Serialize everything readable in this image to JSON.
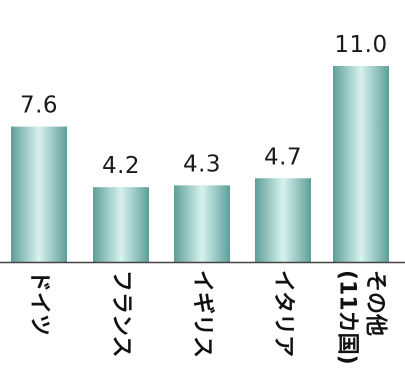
{
  "chart_data": {
    "type": "bar",
    "categories": [
      "ドイツ",
      "フランス",
      "イギリス",
      "イタリア",
      "その他(11カ国)"
    ],
    "category_label_lines": [
      [
        "ドイツ"
      ],
      [
        "フランス"
      ],
      [
        "イギリス"
      ],
      [
        "イタリア"
      ],
      [
        "その他",
        "(11カ国)"
      ]
    ],
    "values": [
      7.6,
      4.2,
      4.3,
      4.7,
      11.0
    ],
    "value_labels": [
      "7.6",
      "4.2",
      "4.3",
      "4.7",
      "11.0"
    ],
    "ylim": [
      0,
      11.0
    ],
    "grid": false,
    "legend": "none",
    "bar_gradient": [
      "#5e9e9a",
      "#d7f2ee",
      "#5e9e9a"
    ],
    "axis_color": "#444444",
    "title": "",
    "xlabel": "",
    "ylabel": ""
  }
}
